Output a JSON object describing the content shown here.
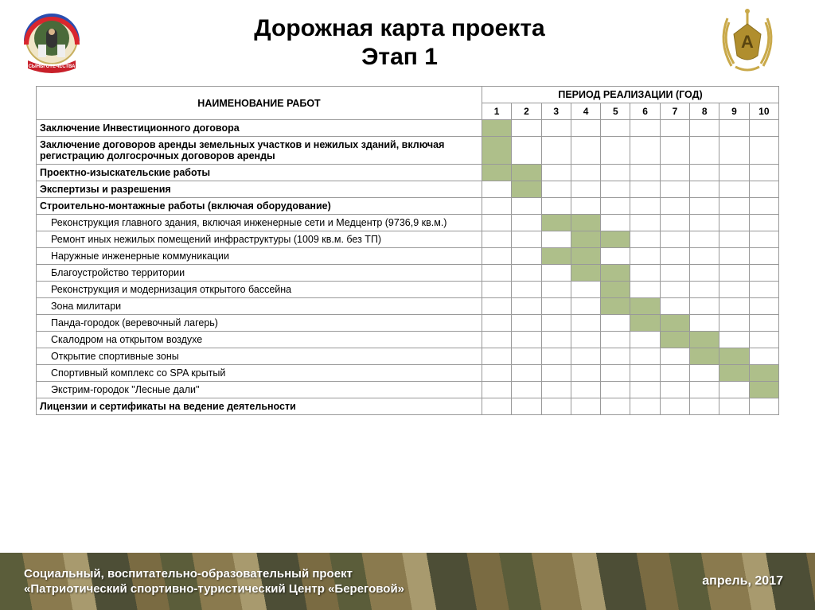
{
  "title": {
    "line1": "Дорожная карта проекта",
    "line2": "Этап 1"
  },
  "table": {
    "name_header": "НАИМЕНОВАНИЕ РАБОТ",
    "period_header": "ПЕРИОД РЕАЛИЗАЦИИ (ГОД)",
    "years": [
      "1",
      "2",
      "3",
      "4",
      "5",
      "6",
      "7",
      "8",
      "9",
      "10"
    ],
    "fill_color": "#aebf8a",
    "border_color": "#999999",
    "rows": [
      {
        "label": "Заключение Инвестиционного договора",
        "bold": true,
        "indent": false,
        "cells": [
          1,
          0,
          0,
          0,
          0,
          0,
          0,
          0,
          0,
          0
        ]
      },
      {
        "label": "Заключение договоров аренды земельных участков и нежилых зданий, включая регистрацию долгосрочных договоров аренды",
        "bold": true,
        "indent": false,
        "cells": [
          1,
          0,
          0,
          0,
          0,
          0,
          0,
          0,
          0,
          0
        ]
      },
      {
        "label": "Проектно-изыскательские работы",
        "bold": true,
        "indent": false,
        "cells": [
          1,
          1,
          0,
          0,
          0,
          0,
          0,
          0,
          0,
          0
        ]
      },
      {
        "label": "Экспертизы и разрешения",
        "bold": true,
        "indent": false,
        "cells": [
          0,
          1,
          0,
          0,
          0,
          0,
          0,
          0,
          0,
          0
        ]
      },
      {
        "label": "Строительно-монтажные работы (включая оборудование)",
        "bold": true,
        "indent": false,
        "cells": [
          0,
          0,
          0,
          0,
          0,
          0,
          0,
          0,
          0,
          0
        ]
      },
      {
        "label": "Реконструкция главного здания, включая инженерные сети и Медцентр (9736,9 кв.м.)",
        "bold": false,
        "indent": true,
        "cells": [
          0,
          0,
          1,
          1,
          0,
          0,
          0,
          0,
          0,
          0
        ]
      },
      {
        "label": "Ремонт иных нежилых помещений инфраструктуры (1009 кв.м. без ТП)",
        "bold": false,
        "indent": true,
        "cells": [
          0,
          0,
          0,
          1,
          1,
          0,
          0,
          0,
          0,
          0
        ]
      },
      {
        "label": "Наружные инженерные коммуникации",
        "bold": false,
        "indent": true,
        "cells": [
          0,
          0,
          1,
          1,
          0,
          0,
          0,
          0,
          0,
          0
        ]
      },
      {
        "label": "Благоустройство территории",
        "bold": false,
        "indent": true,
        "cells": [
          0,
          0,
          0,
          1,
          1,
          0,
          0,
          0,
          0,
          0
        ]
      },
      {
        "label": "Реконструкция и модернизация открытого бассейна",
        "bold": false,
        "indent": true,
        "cells": [
          0,
          0,
          0,
          0,
          1,
          0,
          0,
          0,
          0,
          0
        ]
      },
      {
        "label": "Зона милитари",
        "bold": false,
        "indent": true,
        "cells": [
          0,
          0,
          0,
          0,
          1,
          1,
          0,
          0,
          0,
          0
        ]
      },
      {
        "label": "Панда-городок (веревочный лагерь)",
        "bold": false,
        "indent": true,
        "cells": [
          0,
          0,
          0,
          0,
          0,
          1,
          1,
          0,
          0,
          0
        ]
      },
      {
        "label": "Скалодром на открытом воздухе",
        "bold": false,
        "indent": true,
        "cells": [
          0,
          0,
          0,
          0,
          0,
          0,
          1,
          1,
          0,
          0
        ]
      },
      {
        "label": "Открытие спортивные зоны",
        "bold": false,
        "indent": true,
        "cells": [
          0,
          0,
          0,
          0,
          0,
          0,
          0,
          1,
          1,
          0
        ]
      },
      {
        "label": "Спортивный комплекс со SPA крытый",
        "bold": false,
        "indent": true,
        "cells": [
          0,
          0,
          0,
          0,
          0,
          0,
          0,
          0,
          1,
          1
        ]
      },
      {
        "label": "Экстрим-городок \"Лесные дали\"",
        "bold": false,
        "indent": true,
        "cells": [
          0,
          0,
          0,
          0,
          0,
          0,
          0,
          0,
          0,
          1
        ]
      },
      {
        "label": "Лицензии и сертификаты на ведение деятельности",
        "bold": true,
        "indent": false,
        "cells": [
          0,
          0,
          0,
          0,
          0,
          0,
          0,
          0,
          0,
          0
        ]
      }
    ]
  },
  "footer": {
    "left_line1": "Социальный, воспитательно-образовательный проект",
    "left_line2": "«Патриотический спортивно-туристический Центр «Береговой»",
    "right": "апрель, 2017"
  },
  "logo_left": {
    "ribbon_colors": [
      "#ffffff",
      "#2a4db0",
      "#d9262d"
    ],
    "banner_color": "#c8202a",
    "banner_text": "СЫНЫ ОТЕЧЕСТВА"
  },
  "logo_right": {
    "wreath_color": "#c9a94a",
    "shield_color": "#b08e2e",
    "letter": "А"
  }
}
